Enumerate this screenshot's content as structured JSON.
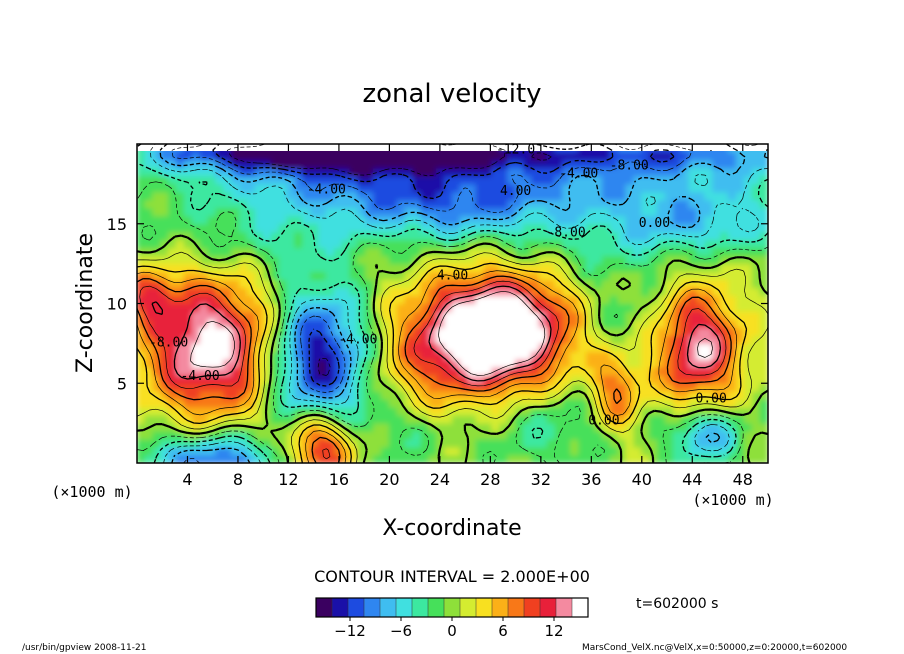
{
  "chart_data": {
    "type": "heatmap",
    "title": "zonal velocity",
    "xlabel": "X-coordinate",
    "ylabel": "Z-coordinate",
    "x_unit_label": "(×1000 m)",
    "y_unit_label": "(×1000 m)",
    "xlim": [
      0,
      50
    ],
    "ylim": [
      0,
      20
    ],
    "x_ticks": [
      4,
      8,
      12,
      16,
      20,
      24,
      28,
      32,
      36,
      40,
      44,
      48
    ],
    "y_ticks": [
      5,
      10,
      15
    ],
    "contour_interval_text": "CONTOUR INTERVAL = 2.000E+00",
    "time_text": "t=602000 s",
    "colorbar": {
      "range": [
        -16,
        16
      ],
      "ticks": [
        -12,
        -6,
        0,
        6,
        12
      ],
      "colors": [
        "#3a0060",
        "#1a10a8",
        "#1d4be0",
        "#2f86f0",
        "#3fbdf0",
        "#40e0e0",
        "#3ce8a0",
        "#46e05a",
        "#8ee03a",
        "#d4ec30",
        "#f8e020",
        "#fbb018",
        "#f87818",
        "#f04020",
        "#e8203a",
        "#f48aa0",
        "#ffffff"
      ]
    },
    "field_features": [
      {
        "x": 5.8,
        "z": 7.3,
        "value": 14,
        "note": "positive jet core"
      },
      {
        "x": 14.5,
        "z": 6.5,
        "value": -14,
        "note": "negative core"
      },
      {
        "x": 29.5,
        "z": 8.2,
        "value": 16,
        "note": "positive maximum"
      },
      {
        "x": 44.5,
        "z": 7.3,
        "value": 13,
        "note": "positive core"
      },
      {
        "x": 14.5,
        "z": 1.3,
        "value": 12,
        "note": "positive near surface"
      },
      {
        "x": 6.0,
        "z": 0.5,
        "value": -10,
        "note": "negative near surface"
      },
      {
        "x": 45.0,
        "z": 2.0,
        "value": -10,
        "note": "negative near surface"
      },
      {
        "x": 25.0,
        "z": 14.0,
        "value": 0,
        "note": "zero contour region"
      },
      {
        "x": 15.0,
        "z": 19.5,
        "value": -14,
        "note": "upper negative layer"
      }
    ],
    "contour_labels": [
      "-12.0",
      "-8.00",
      "-4.00",
      "-4.00",
      "4.00",
      "0.00",
      "-4.00",
      "4.00",
      "-8.00",
      "4.00",
      "-8.00",
      "-4.00",
      "-4.00",
      "0.00",
      "0.00"
    ]
  },
  "footer": {
    "left": "/usr/bin/gpview  2008-11-21",
    "right": "MarsCond_VelX.nc@VelX,x=0:50000,z=0:20000,t=602000"
  }
}
